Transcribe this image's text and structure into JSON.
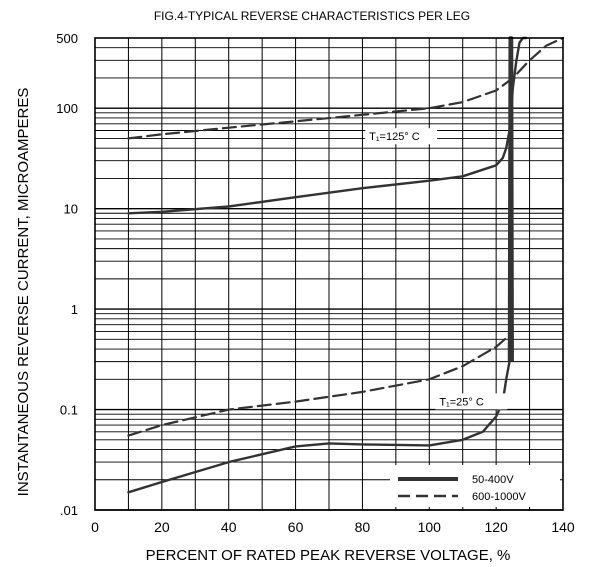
{
  "chart_data": {
    "type": "line",
    "title": "FIG.4-TYPICAL REVERSE CHARACTERISTICS PER LEG",
    "xlabel": "PERCENT OF RATED PEAK REVERSE VOLTAGE, %",
    "ylabel": "INSTANTANEOUS REVERSE CURRENT, MICROAMPERES",
    "x_scale": "linear",
    "y_scale": "log",
    "xlim": [
      0,
      140
    ],
    "ylim": [
      0.01,
      500
    ],
    "x_ticks": [
      0,
      20,
      40,
      60,
      80,
      100,
      120,
      140
    ],
    "x_tick_labels": [
      "0",
      "20",
      "40",
      "60",
      "80",
      "100",
      "120",
      "140"
    ],
    "y_ticks": [
      0.01,
      0.1,
      1,
      10,
      100,
      500
    ],
    "y_tick_labels": [
      ".01",
      "0.1",
      "1",
      "10",
      "100",
      "500"
    ],
    "grid": true,
    "legend": {
      "placement": "bottom-right",
      "entries": [
        {
          "label": "50-400V",
          "style": "solid"
        },
        {
          "label": "600-1000V",
          "style": "dashed"
        }
      ]
    },
    "annotations": [
      {
        "text": "T₁=125° C",
        "x": 82,
        "y": 48
      },
      {
        "text": "T₁=25° C",
        "x": 103,
        "y": 0.11
      }
    ],
    "series": [
      {
        "style": "solid",
        "group": "Tj=125C",
        "x": [
          10,
          20,
          40,
          60,
          80,
          100,
          110,
          120,
          122,
          123,
          124,
          124.5,
          125,
          126,
          127,
          128,
          129
        ],
        "y": [
          9,
          9.3,
          10.5,
          13,
          16,
          19,
          21,
          27,
          32,
          40,
          60,
          100,
          160,
          290,
          450,
          500,
          500
        ]
      },
      {
        "style": "dashed",
        "group": "Tj=125C",
        "x": [
          10,
          20,
          40,
          60,
          80,
          100,
          110,
          120,
          125,
          130,
          135,
          140
        ],
        "y": [
          50,
          55,
          64,
          74,
          86,
          100,
          115,
          150,
          200,
          300,
          420,
          500
        ]
      },
      {
        "style": "solid",
        "group": "Tj=25C",
        "x": [
          10,
          20,
          40,
          60,
          70,
          80,
          100,
          110,
          116,
          120,
          122,
          123,
          124
        ],
        "y": [
          0.015,
          0.019,
          0.03,
          0.043,
          0.046,
          0.045,
          0.044,
          0.05,
          0.06,
          0.085,
          0.12,
          0.2,
          0.3
        ]
      },
      {
        "style": "dashed",
        "group": "Tj=25C",
        "x": [
          10,
          20,
          40,
          60,
          80,
          100,
          110,
          120,
          124
        ],
        "y": [
          0.055,
          0.07,
          0.1,
          0.12,
          0.15,
          0.2,
          0.27,
          0.42,
          0.55
        ]
      },
      {
        "style": "solid",
        "group": "breakdown",
        "x": [
          124,
          124.2,
          124.6,
          124.8
        ],
        "y": [
          0.3,
          500,
          500,
          0.3
        ]
      }
    ]
  }
}
